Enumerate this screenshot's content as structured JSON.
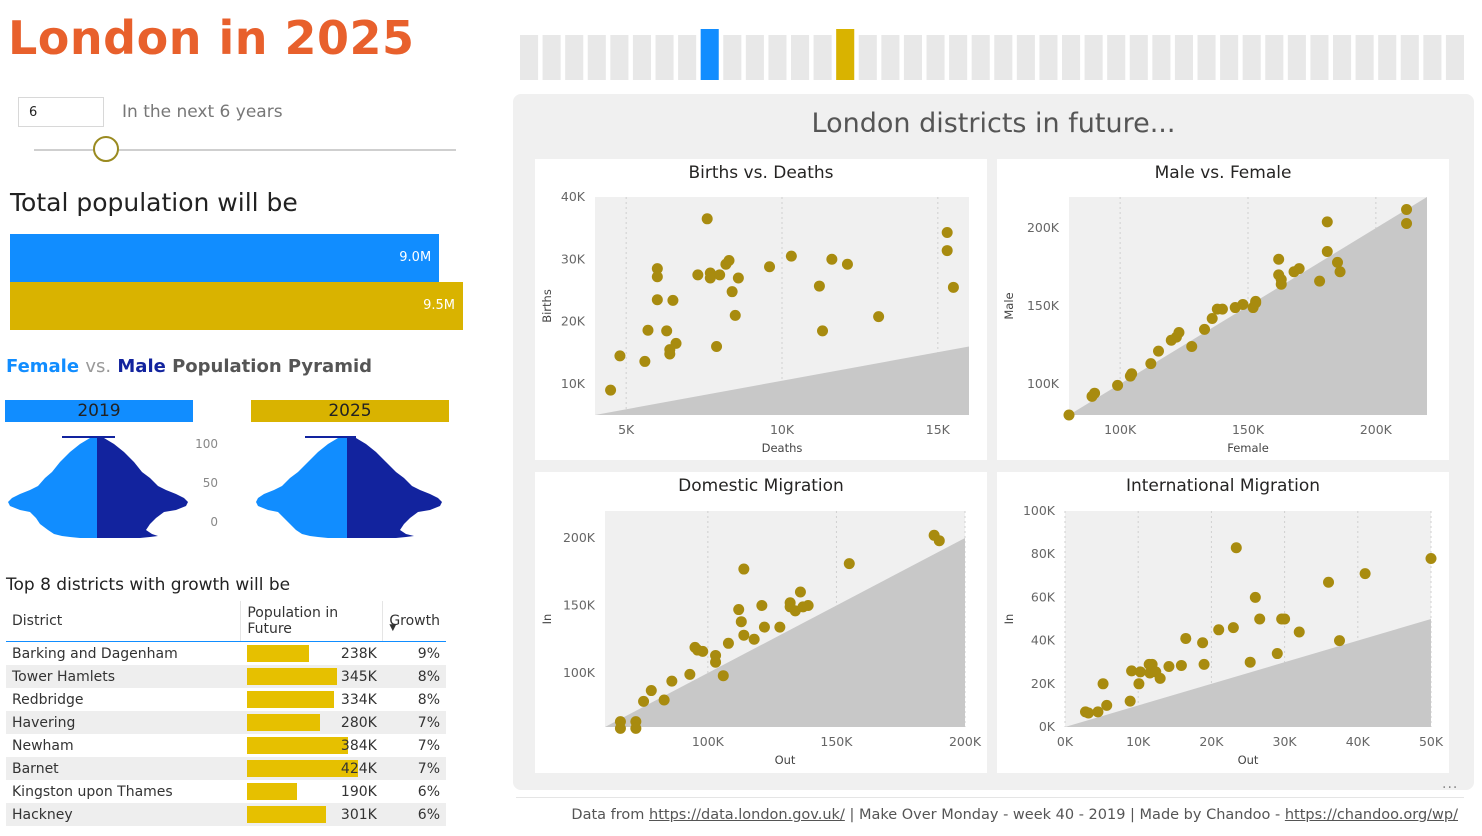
{
  "title": "London in 2025",
  "year_selector": {
    "input_value": "6",
    "caption": "In the next 6 years",
    "slider_value": 6,
    "slider_fraction": 0.17
  },
  "year_strip": {
    "bar_count": 42,
    "highlight_current_index": 8,
    "highlight_future_index": 14
  },
  "colors": {
    "accent_orange": "#e8602c",
    "current_blue": "#118dff",
    "future_gold": "#d9b300",
    "male_navy": "#12239e",
    "point_gold": "#a88b0f"
  },
  "total_population": {
    "heading": "Total population will be",
    "current_label": "9.0M",
    "future_label": "9.5M",
    "current_value": 9.0,
    "future_value": 9.5
  },
  "pyramid": {
    "heading_female": "Female",
    "heading_vs": "vs.",
    "heading_male": "Male",
    "heading_rest": "Population Pyramid",
    "year_current": "2019",
    "year_future": "2025",
    "axis_ticks": [
      "100",
      "50",
      "0"
    ]
  },
  "top8": {
    "heading": "Top 8 districts with growth will be",
    "col_district": "District",
    "col_population": "Population in Future",
    "col_growth": "Growth",
    "sort_indicator": "▼",
    "rows": [
      {
        "district": "Barking and Dagenham",
        "population": "238K",
        "population_value": 238,
        "growth": "9%"
      },
      {
        "district": "Tower Hamlets",
        "population": "345K",
        "population_value": 345,
        "growth": "8%"
      },
      {
        "district": "Redbridge",
        "population": "334K",
        "population_value": 334,
        "growth": "8%"
      },
      {
        "district": "Havering",
        "population": "280K",
        "population_value": 280,
        "growth": "7%"
      },
      {
        "district": "Newham",
        "population": "384K",
        "population_value": 384,
        "growth": "7%"
      },
      {
        "district": "Barnet",
        "population": "424K",
        "population_value": 424,
        "growth": "7%"
      },
      {
        "district": "Kingston upon Thames",
        "population": "190K",
        "population_value": 190,
        "growth": "6%"
      },
      {
        "district": "Hackney",
        "population": "301K",
        "population_value": 301,
        "growth": "6%"
      }
    ]
  },
  "panel_title": "London districts in future...",
  "footer": {
    "prefix": "Data from",
    "link1": "https://data.london.gov.uk/",
    "middle": " | Make Over Monday - week 40 - 2019 | Made by Chandoo -",
    "link2": "https://chandoo.org/wp/"
  },
  "more_options": "...",
  "chart_data": [
    {
      "type": "scatter",
      "title": "Births vs. Deaths",
      "xlabel": "Deaths",
      "ylabel": "Births",
      "xlim": [
        4000,
        16000
      ],
      "ylim": [
        5000,
        40000
      ],
      "xticks": [
        5000,
        10000,
        15000
      ],
      "xtick_labels": [
        "5K",
        "10K",
        "15K"
      ],
      "yticks": [
        10000,
        20000,
        30000,
        40000
      ],
      "ytick_labels": [
        "10K",
        "20K",
        "30K",
        "40K"
      ],
      "points": [
        {
          "x": 4500,
          "y": 9000
        },
        {
          "x": 4800,
          "y": 14500
        },
        {
          "x": 5600,
          "y": 13600
        },
        {
          "x": 5700,
          "y": 18600
        },
        {
          "x": 6000,
          "y": 28500
        },
        {
          "x": 6000,
          "y": 27200
        },
        {
          "x": 6000,
          "y": 23500
        },
        {
          "x": 6300,
          "y": 18500
        },
        {
          "x": 6400,
          "y": 15500
        },
        {
          "x": 6400,
          "y": 14800
        },
        {
          "x": 6600,
          "y": 16500
        },
        {
          "x": 6500,
          "y": 23400
        },
        {
          "x": 7300,
          "y": 27500
        },
        {
          "x": 7600,
          "y": 36500
        },
        {
          "x": 7700,
          "y": 27800
        },
        {
          "x": 7700,
          "y": 27000
        },
        {
          "x": 7900,
          "y": 16000
        },
        {
          "x": 8000,
          "y": 27500
        },
        {
          "x": 8200,
          "y": 29200
        },
        {
          "x": 8300,
          "y": 29800
        },
        {
          "x": 8400,
          "y": 24800
        },
        {
          "x": 8500,
          "y": 21000
        },
        {
          "x": 8600,
          "y": 27000
        },
        {
          "x": 9600,
          "y": 28800
        },
        {
          "x": 10300,
          "y": 30500
        },
        {
          "x": 11200,
          "y": 25700
        },
        {
          "x": 11300,
          "y": 18500
        },
        {
          "x": 11600,
          "y": 30000
        },
        {
          "x": 12100,
          "y": 29200
        },
        {
          "x": 13100,
          "y": 20800
        },
        {
          "x": 15300,
          "y": 34300
        },
        {
          "x": 15300,
          "y": 31400
        },
        {
          "x": 15500,
          "y": 25500
        }
      ],
      "reference_line": [
        [
          4000,
          5000
        ],
        [
          16000,
          16000
        ]
      ]
    },
    {
      "type": "scatter",
      "title": "Male vs. Female",
      "xlabel": "Female",
      "ylabel": "Male",
      "xlim": [
        80000,
        220000
      ],
      "ylim": [
        80000,
        220000
      ],
      "xticks": [
        100000,
        150000,
        200000
      ],
      "xtick_labels": [
        "100K",
        "150K",
        "200K"
      ],
      "yticks": [
        100000,
        150000,
        200000
      ],
      "ytick_labels": [
        "100K",
        "150K",
        "200K"
      ],
      "points": [
        {
          "x": 80000,
          "y": 80000
        },
        {
          "x": 89000,
          "y": 92000
        },
        {
          "x": 90000,
          "y": 94000
        },
        {
          "x": 99000,
          "y": 99000
        },
        {
          "x": 104000,
          "y": 105000
        },
        {
          "x": 104500,
          "y": 106500
        },
        {
          "x": 112000,
          "y": 113000
        },
        {
          "x": 115000,
          "y": 121000
        },
        {
          "x": 120000,
          "y": 128000
        },
        {
          "x": 122000,
          "y": 130000
        },
        {
          "x": 123000,
          "y": 133000
        },
        {
          "x": 128000,
          "y": 124000
        },
        {
          "x": 133000,
          "y": 135000
        },
        {
          "x": 136000,
          "y": 142000
        },
        {
          "x": 138000,
          "y": 148000
        },
        {
          "x": 140000,
          "y": 148000
        },
        {
          "x": 145000,
          "y": 149000
        },
        {
          "x": 148000,
          "y": 151000
        },
        {
          "x": 152000,
          "y": 149000
        },
        {
          "x": 153000,
          "y": 153000
        },
        {
          "x": 153000,
          "y": 152000
        },
        {
          "x": 162000,
          "y": 180000
        },
        {
          "x": 162000,
          "y": 170000
        },
        {
          "x": 163000,
          "y": 167000
        },
        {
          "x": 163000,
          "y": 164000
        },
        {
          "x": 168000,
          "y": 172000
        },
        {
          "x": 170000,
          "y": 174000
        },
        {
          "x": 178000,
          "y": 166000
        },
        {
          "x": 181000,
          "y": 185000
        },
        {
          "x": 181000,
          "y": 204000
        },
        {
          "x": 185000,
          "y": 178000
        },
        {
          "x": 186000,
          "y": 172000
        },
        {
          "x": 212000,
          "y": 212000
        },
        {
          "x": 212000,
          "y": 203000
        }
      ],
      "reference_line": [
        [
          80000,
          80000
        ],
        [
          220000,
          220000
        ]
      ]
    },
    {
      "type": "scatter",
      "title": "Domestic Migration",
      "xlabel": "Out",
      "ylabel": "In",
      "xlim": [
        60000,
        200000
      ],
      "ylim": [
        60000,
        220000
      ],
      "xticks": [
        100000,
        150000,
        200000
      ],
      "xtick_labels": [
        "100K",
        "150K",
        "200K"
      ],
      "yticks": [
        100000,
        150000,
        200000
      ],
      "ytick_labels": [
        "100K",
        "150K",
        "200K"
      ],
      "points": [
        {
          "x": 66000,
          "y": 64000
        },
        {
          "x": 66000,
          "y": 59000
        },
        {
          "x": 72000,
          "y": 64000
        },
        {
          "x": 72000,
          "y": 59000
        },
        {
          "x": 75000,
          "y": 79000
        },
        {
          "x": 78000,
          "y": 87000
        },
        {
          "x": 83000,
          "y": 80000
        },
        {
          "x": 86000,
          "y": 94000
        },
        {
          "x": 93000,
          "y": 99000
        },
        {
          "x": 95000,
          "y": 119000
        },
        {
          "x": 96000,
          "y": 117000
        },
        {
          "x": 98000,
          "y": 116000
        },
        {
          "x": 103000,
          "y": 113000
        },
        {
          "x": 103000,
          "y": 108000
        },
        {
          "x": 106000,
          "y": 98000
        },
        {
          "x": 108000,
          "y": 122000
        },
        {
          "x": 112000,
          "y": 147000
        },
        {
          "x": 113000,
          "y": 138000
        },
        {
          "x": 114000,
          "y": 128000
        },
        {
          "x": 114000,
          "y": 177000
        },
        {
          "x": 118000,
          "y": 125000
        },
        {
          "x": 121000,
          "y": 150000
        },
        {
          "x": 122000,
          "y": 134000
        },
        {
          "x": 128000,
          "y": 134000
        },
        {
          "x": 132000,
          "y": 152000
        },
        {
          "x": 132000,
          "y": 149000
        },
        {
          "x": 134000,
          "y": 146000
        },
        {
          "x": 136000,
          "y": 160000
        },
        {
          "x": 137000,
          "y": 149000
        },
        {
          "x": 139000,
          "y": 150000
        },
        {
          "x": 155000,
          "y": 181000
        },
        {
          "x": 188000,
          "y": 202000
        },
        {
          "x": 190000,
          "y": 198000
        }
      ],
      "reference_line": [
        [
          60000,
          60000
        ],
        [
          200000,
          200000
        ]
      ]
    },
    {
      "type": "scatter",
      "title": "International Migration",
      "xlabel": "Out",
      "ylabel": "In",
      "xlim": [
        0,
        50000
      ],
      "ylim": [
        0,
        100000
      ],
      "xticks": [
        0,
        10000,
        20000,
        30000,
        40000,
        50000
      ],
      "xtick_labels": [
        "0K",
        "10K",
        "20K",
        "30K",
        "40K",
        "50K"
      ],
      "yticks": [
        0,
        20000,
        40000,
        60000,
        80000,
        100000
      ],
      "ytick_labels": [
        "0K",
        "20K",
        "40K",
        "60K",
        "80K",
        "100K"
      ],
      "points": [
        {
          "x": 2800,
          "y": 7000
        },
        {
          "x": 3200,
          "y": 6500
        },
        {
          "x": 4500,
          "y": 7000
        },
        {
          "x": 5200,
          "y": 20000
        },
        {
          "x": 5700,
          "y": 10000
        },
        {
          "x": 8900,
          "y": 12000
        },
        {
          "x": 9100,
          "y": 26000
        },
        {
          "x": 10100,
          "y": 20000
        },
        {
          "x": 10300,
          "y": 25500
        },
        {
          "x": 11500,
          "y": 29000
        },
        {
          "x": 11600,
          "y": 25000
        },
        {
          "x": 11900,
          "y": 29000
        },
        {
          "x": 12400,
          "y": 25500
        },
        {
          "x": 13000,
          "y": 22500
        },
        {
          "x": 14200,
          "y": 28000
        },
        {
          "x": 15900,
          "y": 28500
        },
        {
          "x": 16500,
          "y": 41000
        },
        {
          "x": 18800,
          "y": 39000
        },
        {
          "x": 19000,
          "y": 29000
        },
        {
          "x": 21000,
          "y": 45000
        },
        {
          "x": 23000,
          "y": 46000
        },
        {
          "x": 23400,
          "y": 83000
        },
        {
          "x": 25300,
          "y": 30000
        },
        {
          "x": 26000,
          "y": 60000
        },
        {
          "x": 26600,
          "y": 50000
        },
        {
          "x": 29000,
          "y": 34000
        },
        {
          "x": 29600,
          "y": 50000
        },
        {
          "x": 30000,
          "y": 50000
        },
        {
          "x": 32000,
          "y": 44000
        },
        {
          "x": 36000,
          "y": 67000
        },
        {
          "x": 37500,
          "y": 40000
        },
        {
          "x": 41000,
          "y": 71000
        },
        {
          "x": 50000,
          "y": 78000
        }
      ],
      "reference_line": [
        [
          0,
          0
        ],
        [
          50000,
          50000
        ]
      ]
    }
  ]
}
